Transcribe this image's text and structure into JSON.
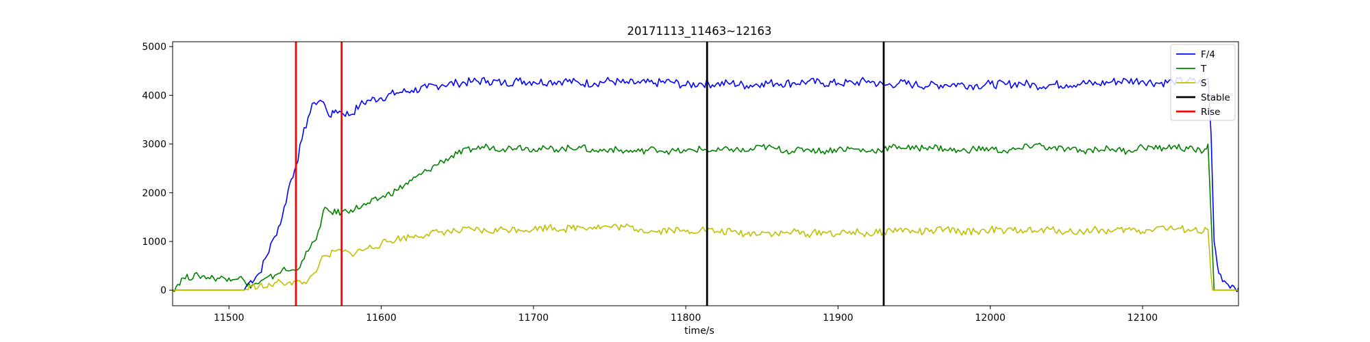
{
  "chart_data": {
    "type": "line",
    "title": "20171113_11463~12163",
    "xlabel": "time/s",
    "ylabel": "",
    "xlim": [
      11463,
      12163
    ],
    "ylim": [
      -320,
      5100
    ],
    "x_ticks": [
      11500,
      11600,
      11700,
      11800,
      11900,
      12000,
      12100
    ],
    "y_ticks": [
      0,
      1000,
      2000,
      3000,
      4000,
      5000
    ],
    "grid": false,
    "legend_position": "top-right",
    "series": [
      {
        "name": "F/4",
        "color": "#0000ff",
        "points": [
          [
            11463,
            0
          ],
          [
            11510,
            0
          ],
          [
            11512,
            120
          ],
          [
            11520,
            350
          ],
          [
            11530,
            1100
          ],
          [
            11535,
            1500
          ],
          [
            11540,
            2200
          ],
          [
            11543,
            2450
          ],
          [
            11544,
            2550
          ],
          [
            11548,
            3100
          ],
          [
            11552,
            3550
          ],
          [
            11556,
            3850
          ],
          [
            11560,
            3900
          ],
          [
            11563,
            3800
          ],
          [
            11567,
            3550
          ],
          [
            11570,
            3700
          ],
          [
            11574,
            3650
          ],
          [
            11580,
            3600
          ],
          [
            11586,
            3800
          ],
          [
            11592,
            3900
          ],
          [
            11600,
            3950
          ],
          [
            11610,
            4050
          ],
          [
            11620,
            4100
          ],
          [
            11630,
            4150
          ],
          [
            11640,
            4220
          ],
          [
            11650,
            4250
          ],
          [
            11660,
            4280
          ],
          [
            11670,
            4300
          ],
          [
            11680,
            4250
          ],
          [
            11690,
            4300
          ],
          [
            11700,
            4280
          ],
          [
            11710,
            4280
          ],
          [
            11720,
            4300
          ],
          [
            11730,
            4250
          ],
          [
            11740,
            4250
          ],
          [
            11750,
            4300
          ],
          [
            11760,
            4250
          ],
          [
            11770,
            4250
          ],
          [
            11780,
            4250
          ],
          [
            11790,
            4280
          ],
          [
            11800,
            4200
          ],
          [
            11810,
            4250
          ],
          [
            11820,
            4230
          ],
          [
            11830,
            4250
          ],
          [
            11840,
            4200
          ],
          [
            11850,
            4250
          ],
          [
            11860,
            4250
          ],
          [
            11870,
            4250
          ],
          [
            11880,
            4280
          ],
          [
            11890,
            4250
          ],
          [
            11900,
            4250
          ],
          [
            11910,
            4250
          ],
          [
            11920,
            4300
          ],
          [
            11930,
            4200
          ],
          [
            11940,
            4250
          ],
          [
            11950,
            4220
          ],
          [
            11960,
            4200
          ],
          [
            11970,
            4220
          ],
          [
            11980,
            4230
          ],
          [
            11990,
            4200
          ],
          [
            12000,
            4230
          ],
          [
            12010,
            4220
          ],
          [
            12020,
            4250
          ],
          [
            12030,
            4200
          ],
          [
            12040,
            4220
          ],
          [
            12050,
            4220
          ],
          [
            12060,
            4250
          ],
          [
            12070,
            4230
          ],
          [
            12080,
            4280
          ],
          [
            12090,
            4300
          ],
          [
            12100,
            4300
          ],
          [
            12110,
            4250
          ],
          [
            12120,
            4280
          ],
          [
            12130,
            4300
          ],
          [
            12140,
            4250
          ],
          [
            12143,
            4350
          ],
          [
            12145,
            3200
          ],
          [
            12147,
            1000
          ],
          [
            12150,
            350
          ],
          [
            12155,
            150
          ],
          [
            12160,
            80
          ],
          [
            12163,
            50
          ]
        ]
      },
      {
        "name": "T",
        "color": "#008000",
        "points": [
          [
            11463,
            0
          ],
          [
            11470,
            250
          ],
          [
            11480,
            300
          ],
          [
            11490,
            250
          ],
          [
            11500,
            250
          ],
          [
            11507,
            270
          ],
          [
            11510,
            200
          ],
          [
            11512,
            80
          ],
          [
            11520,
            150
          ],
          [
            11530,
            300
          ],
          [
            11535,
            420
          ],
          [
            11540,
            400
          ],
          [
            11544,
            400
          ],
          [
            11548,
            600
          ],
          [
            11552,
            800
          ],
          [
            11556,
            1000
          ],
          [
            11560,
            1300
          ],
          [
            11563,
            1700
          ],
          [
            11567,
            1600
          ],
          [
            11574,
            1600
          ],
          [
            11580,
            1650
          ],
          [
            11590,
            1750
          ],
          [
            11600,
            1900
          ],
          [
            11610,
            2050
          ],
          [
            11620,
            2250
          ],
          [
            11630,
            2450
          ],
          [
            11640,
            2650
          ],
          [
            11650,
            2800
          ],
          [
            11660,
            2900
          ],
          [
            11670,
            2950
          ],
          [
            11680,
            2900
          ],
          [
            11690,
            2950
          ],
          [
            11700,
            2900
          ],
          [
            11710,
            2900
          ],
          [
            11720,
            2900
          ],
          [
            11730,
            2950
          ],
          [
            11740,
            2850
          ],
          [
            11750,
            2900
          ],
          [
            11760,
            2850
          ],
          [
            11770,
            2850
          ],
          [
            11780,
            2900
          ],
          [
            11790,
            2850
          ],
          [
            11800,
            2850
          ],
          [
            11810,
            2900
          ],
          [
            11820,
            2850
          ],
          [
            11830,
            2900
          ],
          [
            11840,
            2850
          ],
          [
            11850,
            2950
          ],
          [
            11860,
            2900
          ],
          [
            11870,
            2850
          ],
          [
            11880,
            2900
          ],
          [
            11890,
            2850
          ],
          [
            11900,
            2900
          ],
          [
            11910,
            2900
          ],
          [
            11920,
            2850
          ],
          [
            11930,
            2900
          ],
          [
            11940,
            2950
          ],
          [
            11950,
            2900
          ],
          [
            11960,
            2950
          ],
          [
            11970,
            2900
          ],
          [
            11980,
            2850
          ],
          [
            11990,
            2900
          ],
          [
            12000,
            2900
          ],
          [
            12010,
            2850
          ],
          [
            12020,
            2900
          ],
          [
            12030,
            3000
          ],
          [
            12040,
            2900
          ],
          [
            12050,
            2900
          ],
          [
            12060,
            2850
          ],
          [
            12070,
            2900
          ],
          [
            12080,
            2900
          ],
          [
            12090,
            2850
          ],
          [
            12100,
            2950
          ],
          [
            12110,
            2900
          ],
          [
            12120,
            2950
          ],
          [
            12130,
            2900
          ],
          [
            12140,
            2850
          ],
          [
            12143,
            3000
          ],
          [
            12145,
            1500
          ],
          [
            12147,
            0
          ],
          [
            12163,
            0
          ]
        ]
      },
      {
        "name": "S",
        "color": "#bfbf00",
        "points": [
          [
            11463,
            0
          ],
          [
            11510,
            0
          ],
          [
            11515,
            70
          ],
          [
            11520,
            100
          ],
          [
            11525,
            50
          ],
          [
            11530,
            150
          ],
          [
            11535,
            150
          ],
          [
            11540,
            170
          ],
          [
            11544,
            170
          ],
          [
            11548,
            130
          ],
          [
            11552,
            200
          ],
          [
            11556,
            350
          ],
          [
            11560,
            600
          ],
          [
            11565,
            700
          ],
          [
            11570,
            800
          ],
          [
            11574,
            800
          ],
          [
            11580,
            750
          ],
          [
            11590,
            850
          ],
          [
            11600,
            950
          ],
          [
            11610,
            1050
          ],
          [
            11620,
            1100
          ],
          [
            11630,
            1150
          ],
          [
            11640,
            1200
          ],
          [
            11650,
            1200
          ],
          [
            11660,
            1250
          ],
          [
            11670,
            1200
          ],
          [
            11680,
            1250
          ],
          [
            11690,
            1250
          ],
          [
            11700,
            1250
          ],
          [
            11710,
            1300
          ],
          [
            11720,
            1250
          ],
          [
            11730,
            1300
          ],
          [
            11740,
            1300
          ],
          [
            11750,
            1300
          ],
          [
            11760,
            1300
          ],
          [
            11770,
            1250
          ],
          [
            11780,
            1200
          ],
          [
            11790,
            1250
          ],
          [
            11800,
            1200
          ],
          [
            11810,
            1250
          ],
          [
            11820,
            1200
          ],
          [
            11830,
            1200
          ],
          [
            11840,
            1150
          ],
          [
            11850,
            1200
          ],
          [
            11860,
            1150
          ],
          [
            11870,
            1200
          ],
          [
            11880,
            1150
          ],
          [
            11890,
            1200
          ],
          [
            11900,
            1150
          ],
          [
            11910,
            1200
          ],
          [
            11920,
            1150
          ],
          [
            11930,
            1200
          ],
          [
            11940,
            1250
          ],
          [
            11950,
            1200
          ],
          [
            11960,
            1200
          ],
          [
            11970,
            1250
          ],
          [
            11980,
            1200
          ],
          [
            11990,
            1200
          ],
          [
            12000,
            1250
          ],
          [
            12010,
            1200
          ],
          [
            12020,
            1250
          ],
          [
            12030,
            1200
          ],
          [
            12040,
            1250
          ],
          [
            12050,
            1200
          ],
          [
            12060,
            1200
          ],
          [
            12070,
            1250
          ],
          [
            12080,
            1200
          ],
          [
            12090,
            1250
          ],
          [
            12100,
            1200
          ],
          [
            12110,
            1300
          ],
          [
            12120,
            1250
          ],
          [
            12130,
            1250
          ],
          [
            12140,
            1200
          ],
          [
            12143,
            1250
          ],
          [
            12145,
            300
          ],
          [
            12146,
            0
          ],
          [
            12163,
            0
          ]
        ]
      }
    ],
    "markers": [
      {
        "name": "Stable",
        "color": "#000000",
        "x": [
          11814,
          11930
        ]
      },
      {
        "name": "Rise",
        "color": "#ff0000",
        "x": [
          11544,
          11574
        ]
      }
    ]
  }
}
